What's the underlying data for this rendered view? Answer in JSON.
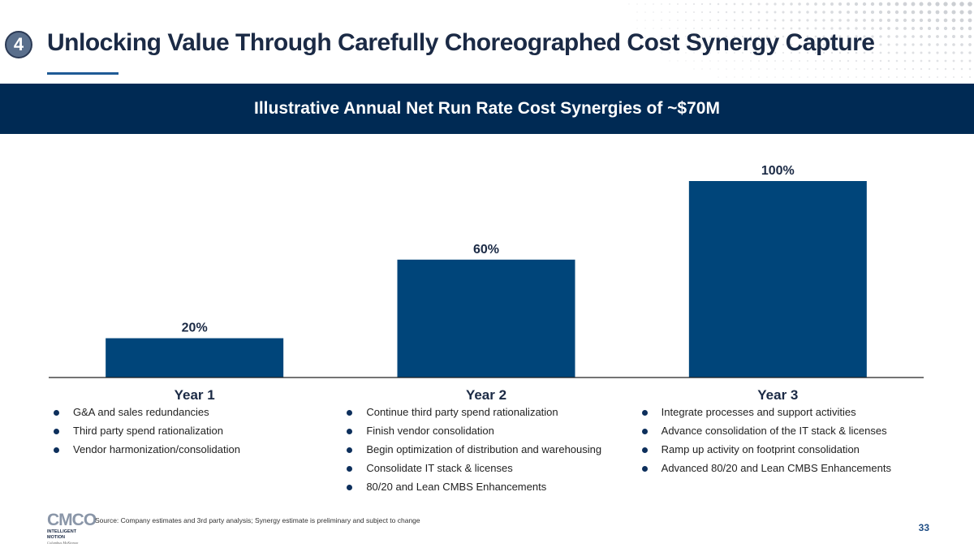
{
  "header": {
    "section_number": "4",
    "title": "Unlocking Value Through Carefully Choreographed Cost Synergy Capture"
  },
  "banner": {
    "text": "Illustrative Annual Net Run Rate Cost Synergies of ~$70M"
  },
  "chart_data": {
    "type": "bar",
    "title": "Illustrative Annual Net Run Rate Cost Synergies of ~$70M",
    "categories": [
      "Year 1",
      "Year 2",
      "Year 3"
    ],
    "values": [
      20,
      60,
      100
    ],
    "value_labels": [
      "20%",
      "60%",
      "100%"
    ],
    "unit": "%",
    "xlabel": "",
    "ylabel": "",
    "ylim": [
      0,
      100
    ],
    "grid": false,
    "legend": "none",
    "bar_color": "#00457a"
  },
  "columns": [
    {
      "label": "Year 1",
      "bullets": [
        "G&A and sales redundancies",
        "Third party spend rationalization",
        "Vendor harmonization/consolidation"
      ]
    },
    {
      "label": "Year 2",
      "bullets": [
        "Continue third party spend rationalization",
        "Finish vendor consolidation",
        "Begin optimization of distribution and warehousing",
        "Consolidate IT stack & licenses",
        "80/20 and Lean CMBS Enhancements"
      ]
    },
    {
      "label": "Year 3",
      "bullets": [
        "Integrate processes and support activities",
        "Advance consolidation of the IT stack & licenses",
        "Ramp up activity on footprint consolidation",
        "Advanced 80/20 and Lean CMBS Enhancements"
      ]
    }
  ],
  "footer": {
    "logo_text": "CMCO",
    "logo_subtitle": "INTELLIGENT MOTION",
    "logo_subtitle2": "Columbus McKinnon",
    "source": "Source: Company estimates and 3rd party analysis; Synergy estimate is preliminary and subject to change",
    "page_number": "33"
  },
  "colors": {
    "navy": "#002a54",
    "bar": "#00457a",
    "title": "#1b2a45",
    "accent": "#1f5b96"
  }
}
